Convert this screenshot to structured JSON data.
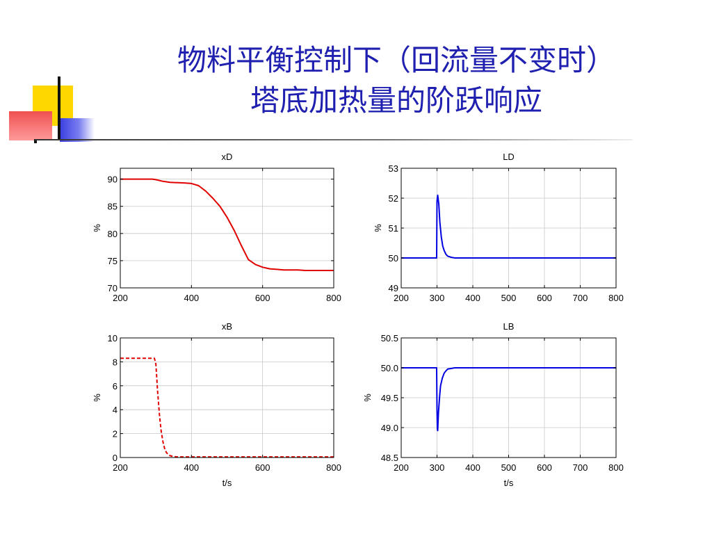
{
  "slide": {
    "title_line1": "物料平衡控制下（回流量不变时）",
    "title_line2": "塔底加热量的阶跃响应"
  },
  "chart_data": [
    {
      "type": "line",
      "title": "xD",
      "xlabel": "",
      "ylabel": "%",
      "xlim": [
        200,
        800
      ],
      "ylim": [
        70,
        92
      ],
      "xticks": [
        200,
        400,
        600,
        800
      ],
      "yticks": [
        70,
        75,
        80,
        85,
        90
      ],
      "grid": true,
      "series": [
        {
          "color": "#e00000",
          "dash": "solid",
          "x": [
            200,
            290,
            300,
            320,
            340,
            380,
            400,
            420,
            440,
            460,
            480,
            500,
            520,
            540,
            560,
            580,
            600,
            620,
            640,
            660,
            700,
            720,
            740,
            800
          ],
          "y": [
            90,
            90,
            89.9,
            89.6,
            89.4,
            89.3,
            89.2,
            88.8,
            87.8,
            86.5,
            85,
            83,
            80.6,
            77.8,
            75.2,
            74.3,
            73.8,
            73.5,
            73.4,
            73.3,
            73.3,
            73.2,
            73.2,
            73.2
          ]
        }
      ]
    },
    {
      "type": "line",
      "title": "LD",
      "xlabel": "",
      "ylabel": "%",
      "xlim": [
        200,
        800
      ],
      "ylim": [
        49,
        53
      ],
      "xticks": [
        200,
        300,
        400,
        500,
        600,
        700,
        800
      ],
      "yticks": [
        49,
        50,
        51,
        52,
        53
      ],
      "grid": true,
      "series": [
        {
          "color": "#0000e0",
          "dash": "solid",
          "x": [
            200,
            299,
            300,
            302,
            305,
            308,
            312,
            316,
            320,
            325,
            330,
            340,
            350,
            800
          ],
          "y": [
            50,
            50,
            51.9,
            52.1,
            51.8,
            51.2,
            50.7,
            50.4,
            50.25,
            50.12,
            50.06,
            50.02,
            50,
            50
          ]
        }
      ]
    },
    {
      "type": "line",
      "title": "xB",
      "xlabel": "t/s",
      "ylabel": "%",
      "xlim": [
        200,
        800
      ],
      "ylim": [
        0,
        10
      ],
      "xticks": [
        200,
        400,
        600,
        800
      ],
      "yticks": [
        0,
        2,
        4,
        6,
        8,
        10
      ],
      "grid": true,
      "series": [
        {
          "color": "#e00000",
          "dash": "dashed",
          "x": [
            200,
            296,
            300,
            305,
            310,
            315,
            320,
            325,
            330,
            335,
            340,
            350,
            360,
            800
          ],
          "y": [
            8.3,
            8.3,
            7.8,
            5.5,
            3.6,
            2.2,
            1.3,
            0.7,
            0.4,
            0.25,
            0.15,
            0.08,
            0.05,
            0.05
          ]
        }
      ]
    },
    {
      "type": "line",
      "title": "LB",
      "xlabel": "t/s",
      "ylabel": "%",
      "xlim": [
        200,
        800
      ],
      "ylim": [
        48.5,
        50.5
      ],
      "xticks": [
        200,
        300,
        400,
        500,
        600,
        700,
        800
      ],
      "yticks": [
        48.5,
        49,
        49.5,
        50,
        50.5
      ],
      "tick_decimals": 1,
      "grid": true,
      "series": [
        {
          "color": "#0000e0",
          "dash": "solid",
          "x": [
            200,
            299,
            300,
            301,
            302,
            304,
            307,
            310,
            315,
            320,
            325,
            330,
            340,
            350,
            800
          ],
          "y": [
            50,
            50,
            49.3,
            48.98,
            48.95,
            49.25,
            49.5,
            49.7,
            49.83,
            49.91,
            49.95,
            49.98,
            49.99,
            50,
            50
          ]
        }
      ]
    }
  ]
}
